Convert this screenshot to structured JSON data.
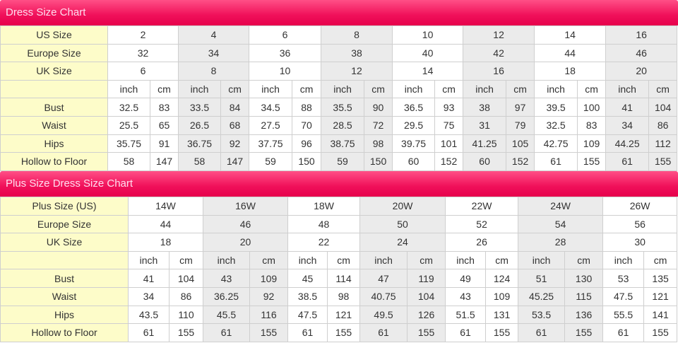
{
  "colors": {
    "header": "#f0105a",
    "label_bg": "#fdfcc9",
    "shade": "#ebebeb",
    "border": "#cfcfcf"
  },
  "standard": {
    "title": "Dress Size Chart",
    "row_labels": {
      "us": "US Size",
      "eu": "Europe Size",
      "uk": "UK Size",
      "units": "",
      "bust": "Bust",
      "waist": "Waist",
      "hips": "Hips",
      "hollow": "Hollow to Floor"
    },
    "unit_labels": {
      "inch": "inch",
      "cm": "cm"
    },
    "sizes": [
      {
        "us": "2",
        "eu": "32",
        "uk": "6",
        "bust": [
          "32.5",
          "83"
        ],
        "waist": [
          "25.5",
          "65"
        ],
        "hips": [
          "35.75",
          "91"
        ],
        "hollow": [
          "58",
          "147"
        ]
      },
      {
        "us": "4",
        "eu": "34",
        "uk": "8",
        "bust": [
          "33.5",
          "84"
        ],
        "waist": [
          "26.5",
          "68"
        ],
        "hips": [
          "36.75",
          "92"
        ],
        "hollow": [
          "58",
          "147"
        ]
      },
      {
        "us": "6",
        "eu": "36",
        "uk": "10",
        "bust": [
          "34.5",
          "88"
        ],
        "waist": [
          "27.5",
          "70"
        ],
        "hips": [
          "37.75",
          "96"
        ],
        "hollow": [
          "59",
          "150"
        ]
      },
      {
        "us": "8",
        "eu": "38",
        "uk": "12",
        "bust": [
          "35.5",
          "90"
        ],
        "waist": [
          "28.5",
          "72"
        ],
        "hips": [
          "38.75",
          "98"
        ],
        "hollow": [
          "59",
          "150"
        ]
      },
      {
        "us": "10",
        "eu": "40",
        "uk": "14",
        "bust": [
          "36.5",
          "93"
        ],
        "waist": [
          "29.5",
          "75"
        ],
        "hips": [
          "39.75",
          "101"
        ],
        "hollow": [
          "60",
          "152"
        ]
      },
      {
        "us": "12",
        "eu": "42",
        "uk": "16",
        "bust": [
          "38",
          "97"
        ],
        "waist": [
          "31",
          "79"
        ],
        "hips": [
          "41.25",
          "105"
        ],
        "hollow": [
          "60",
          "152"
        ]
      },
      {
        "us": "14",
        "eu": "44",
        "uk": "18",
        "bust": [
          "39.5",
          "100"
        ],
        "waist": [
          "32.5",
          "83"
        ],
        "hips": [
          "42.75",
          "109"
        ],
        "hollow": [
          "61",
          "155"
        ]
      },
      {
        "us": "16",
        "eu": "46",
        "uk": "20",
        "bust": [
          "41",
          "104"
        ],
        "waist": [
          "34",
          "86"
        ],
        "hips": [
          "44.25",
          "112"
        ],
        "hollow": [
          "61",
          "155"
        ]
      }
    ]
  },
  "plus": {
    "title": "Plus Size Dress Size Chart",
    "row_labels": {
      "us": "Plus Size (US)",
      "eu": "Europe Size",
      "uk": "UK Size",
      "units": "",
      "bust": "Bust",
      "waist": "Waist",
      "hips": "Hips",
      "hollow": "Hollow to Floor"
    },
    "unit_labels": {
      "inch": "inch",
      "cm": "cm"
    },
    "sizes": [
      {
        "us": "14W",
        "eu": "44",
        "uk": "18",
        "bust": [
          "41",
          "104"
        ],
        "waist": [
          "34",
          "86"
        ],
        "hips": [
          "43.5",
          "110"
        ],
        "hollow": [
          "61",
          "155"
        ]
      },
      {
        "us": "16W",
        "eu": "46",
        "uk": "20",
        "bust": [
          "43",
          "109"
        ],
        "waist": [
          "36.25",
          "92"
        ],
        "hips": [
          "45.5",
          "116"
        ],
        "hollow": [
          "61",
          "155"
        ]
      },
      {
        "us": "18W",
        "eu": "48",
        "uk": "22",
        "bust": [
          "45",
          "114"
        ],
        "waist": [
          "38.5",
          "98"
        ],
        "hips": [
          "47.5",
          "121"
        ],
        "hollow": [
          "61",
          "155"
        ]
      },
      {
        "us": "20W",
        "eu": "50",
        "uk": "24",
        "bust": [
          "47",
          "119"
        ],
        "waist": [
          "40.75",
          "104"
        ],
        "hips": [
          "49.5",
          "126"
        ],
        "hollow": [
          "61",
          "155"
        ]
      },
      {
        "us": "22W",
        "eu": "52",
        "uk": "26",
        "bust": [
          "49",
          "124"
        ],
        "waist": [
          "43",
          "109"
        ],
        "hips": [
          "51.5",
          "131"
        ],
        "hollow": [
          "61",
          "155"
        ]
      },
      {
        "us": "24W",
        "eu": "54",
        "uk": "28",
        "bust": [
          "51",
          "130"
        ],
        "waist": [
          "45.25",
          "115"
        ],
        "hips": [
          "53.5",
          "136"
        ],
        "hollow": [
          "61",
          "155"
        ]
      },
      {
        "us": "26W",
        "eu": "56",
        "uk": "30",
        "bust": [
          "53",
          "135"
        ],
        "waist": [
          "47.5",
          "121"
        ],
        "hips": [
          "55.5",
          "141"
        ],
        "hollow": [
          "61",
          "155"
        ]
      }
    ]
  }
}
